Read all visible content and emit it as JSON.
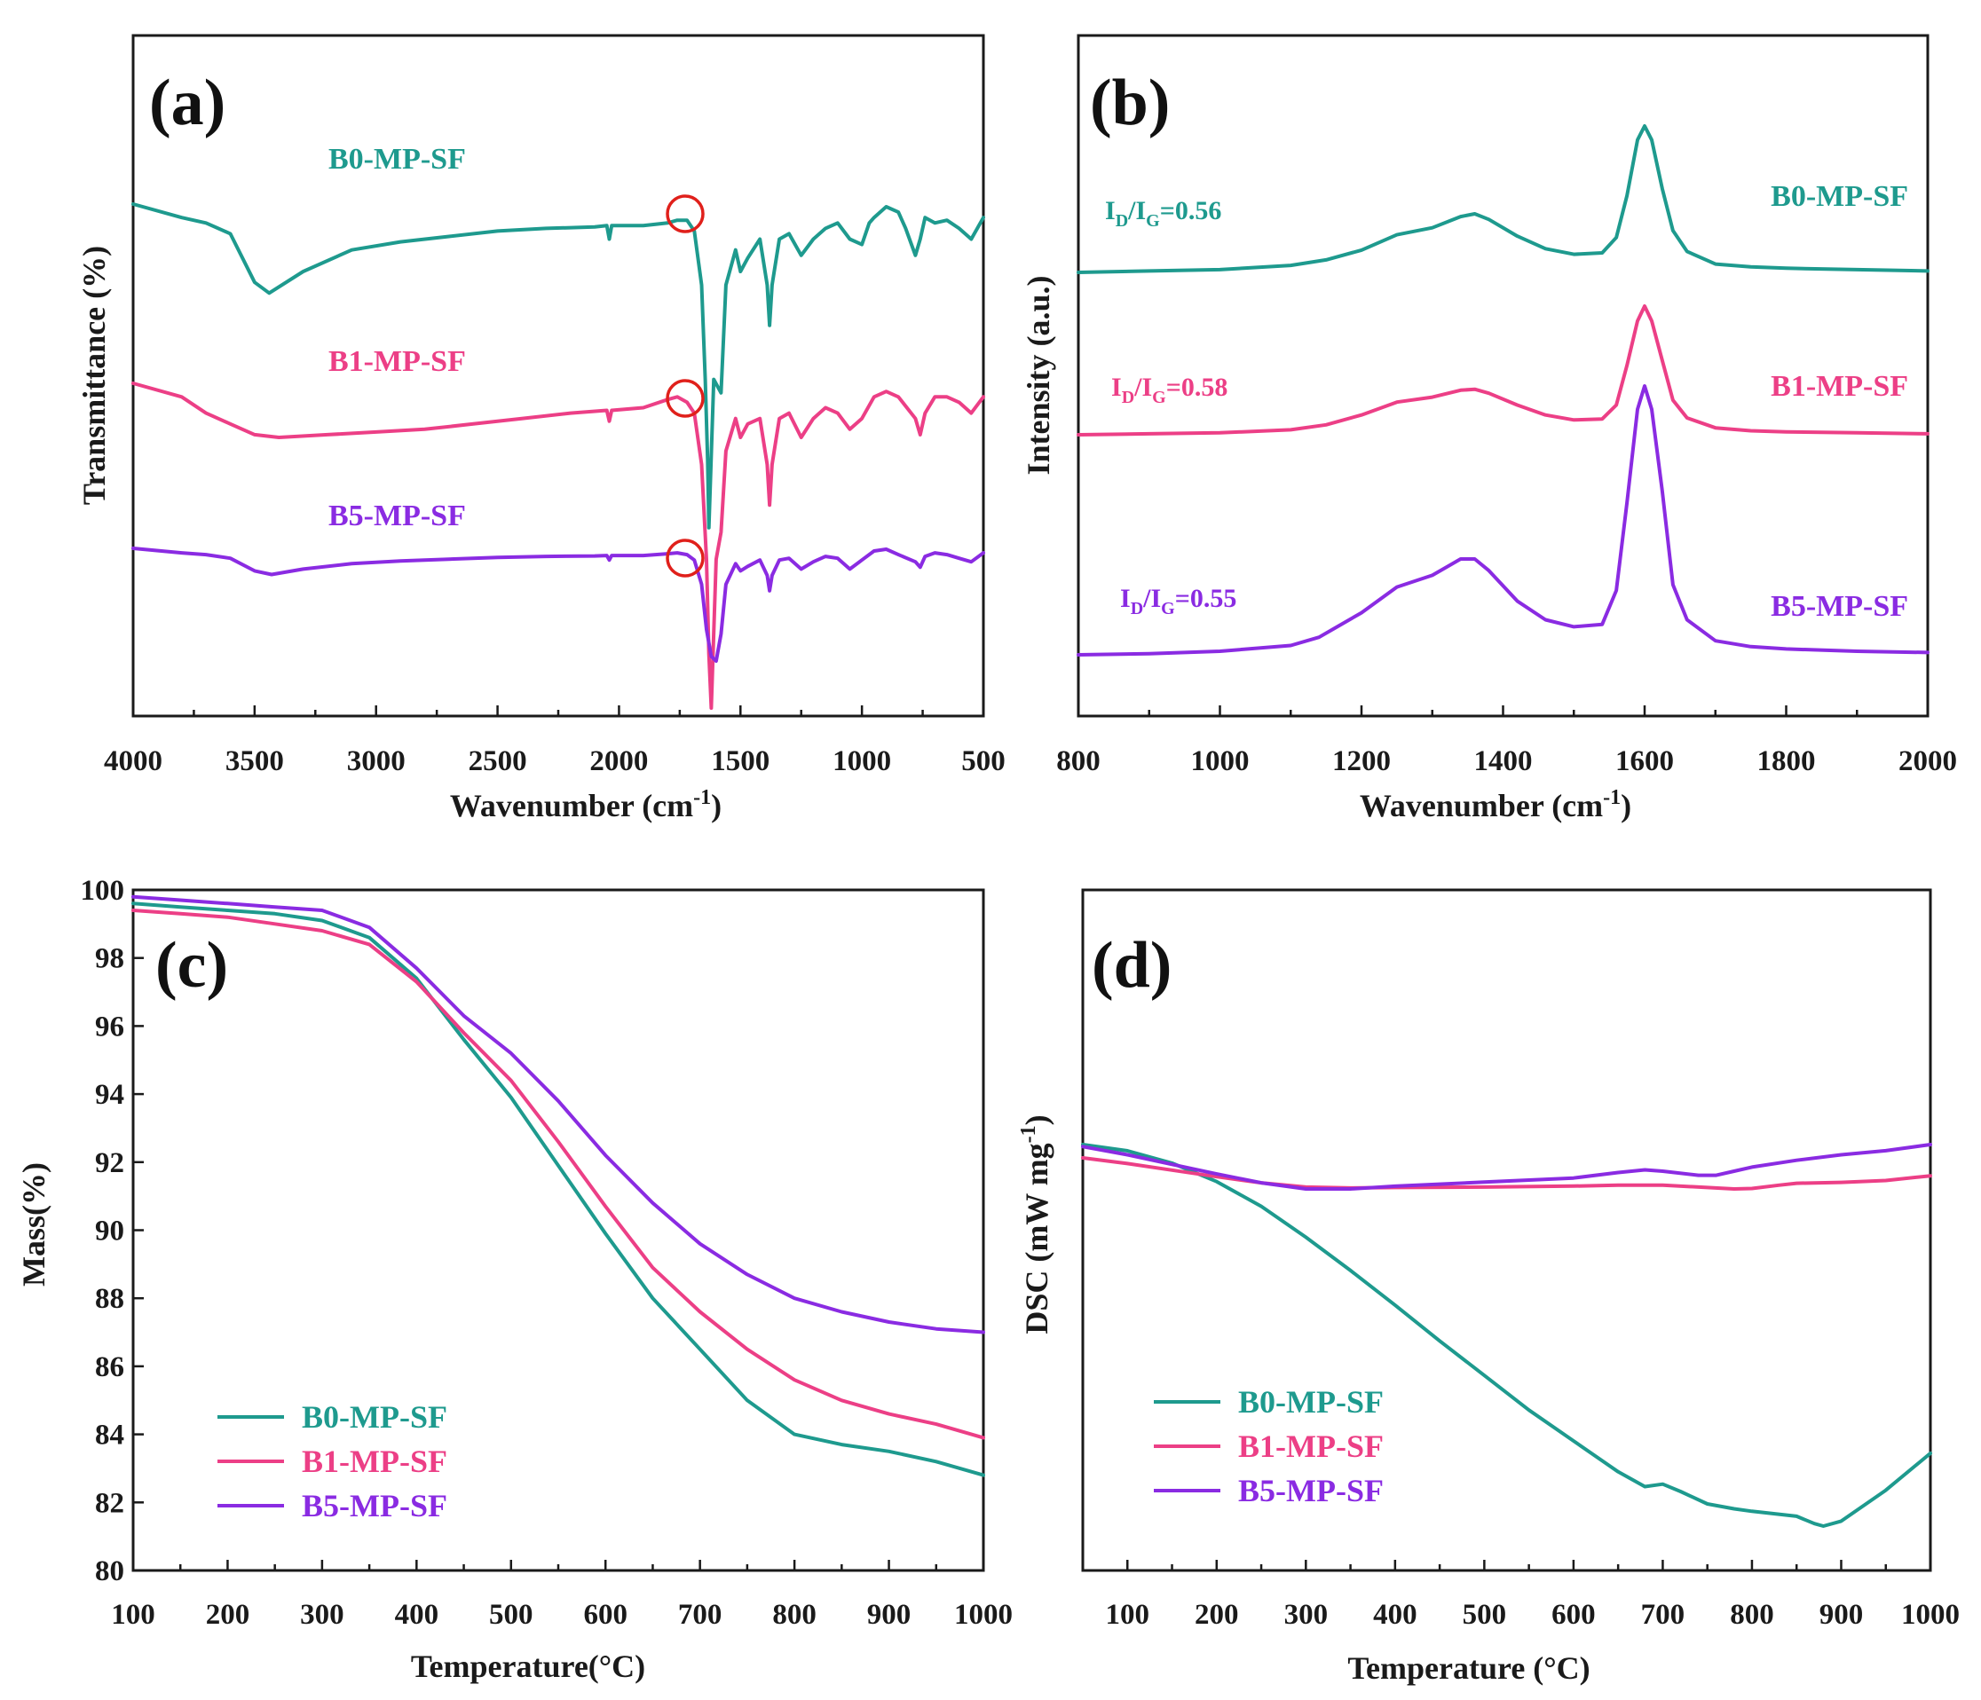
{
  "colors": {
    "B0": "#1e9a8e",
    "B1": "#ec3f86",
    "B5": "#8a2be2",
    "axis": "#1a1a1a",
    "marker": "#e0201b"
  },
  "chart_data": [
    {
      "panel": "(a)",
      "type": "line",
      "xlabel": "Wavenumber (cm-1)",
      "xlabel_main": "Wavenumber (cm",
      "xlabel_sup": "-1",
      "xlabel_end": ")",
      "ylabel": "Transmittance (%)",
      "xlim": [
        4000,
        500
      ],
      "x_ticks": [
        "4000",
        "3500",
        "3000",
        "2500",
        "2000",
        "1500",
        "1000",
        "500"
      ],
      "y_ticks": [],
      "annotation": "red circles at ~1720 cm-1 on each curve",
      "series": [
        {
          "name": "B0-MP-SF",
          "x": [
            4000,
            3800,
            3700,
            3600,
            3500,
            3440,
            3300,
            3100,
            2900,
            2700,
            2500,
            2300,
            2100,
            2050,
            2040,
            2030,
            1900,
            1800,
            1760,
            1720,
            1690,
            1660,
            1645,
            1635,
            1630,
            1610,
            1580,
            1560,
            1520,
            1500,
            1470,
            1420,
            1390,
            1380,
            1370,
            1340,
            1300,
            1250,
            1200,
            1150,
            1100,
            1050,
            1000,
            970,
            950,
            900,
            850,
            820,
            780,
            760,
            740,
            700,
            650,
            600,
            550,
            500
          ],
          "values": [
            0.85,
            0.8,
            0.78,
            0.74,
            0.56,
            0.52,
            0.6,
            0.68,
            0.71,
            0.73,
            0.75,
            0.76,
            0.765,
            0.77,
            0.72,
            0.77,
            0.77,
            0.78,
            0.79,
            0.79,
            0.75,
            0.55,
            0.2,
            -0.1,
            -0.35,
            0.2,
            0.15,
            0.55,
            0.68,
            0.6,
            0.65,
            0.72,
            0.55,
            0.4,
            0.55,
            0.72,
            0.74,
            0.66,
            0.72,
            0.76,
            0.78,
            0.72,
            0.7,
            0.78,
            0.8,
            0.84,
            0.82,
            0.76,
            0.66,
            0.72,
            0.8,
            0.78,
            0.79,
            0.76,
            0.72,
            0.8
          ]
        },
        {
          "name": "B1-MP-SF",
          "x": [
            4000,
            3800,
            3700,
            3600,
            3500,
            3400,
            3200,
            3000,
            2800,
            2600,
            2400,
            2200,
            2050,
            2040,
            2030,
            1900,
            1800,
            1760,
            1720,
            1690,
            1660,
            1640,
            1630,
            1620,
            1600,
            1580,
            1560,
            1520,
            1500,
            1470,
            1420,
            1390,
            1380,
            1370,
            1340,
            1300,
            1250,
            1200,
            1150,
            1100,
            1050,
            1000,
            950,
            900,
            850,
            780,
            760,
            740,
            700,
            650,
            600,
            550,
            500
          ],
          "values": [
            0.85,
            0.8,
            0.74,
            0.7,
            0.66,
            0.65,
            0.66,
            0.67,
            0.68,
            0.7,
            0.72,
            0.74,
            0.75,
            0.71,
            0.75,
            0.76,
            0.79,
            0.8,
            0.78,
            0.74,
            0.55,
            0.2,
            -0.15,
            -0.35,
            0.2,
            0.3,
            0.6,
            0.72,
            0.65,
            0.7,
            0.72,
            0.55,
            0.4,
            0.55,
            0.72,
            0.74,
            0.65,
            0.72,
            0.76,
            0.74,
            0.68,
            0.72,
            0.8,
            0.82,
            0.8,
            0.72,
            0.66,
            0.74,
            0.8,
            0.8,
            0.78,
            0.74,
            0.8
          ]
        },
        {
          "name": "B5-MP-SF",
          "x": [
            4000,
            3800,
            3700,
            3600,
            3500,
            3430,
            3300,
            3100,
            2900,
            2700,
            2500,
            2300,
            2100,
            2050,
            2040,
            2030,
            1900,
            1800,
            1760,
            1720,
            1690,
            1660,
            1640,
            1620,
            1600,
            1580,
            1560,
            1520,
            1500,
            1470,
            1420,
            1390,
            1380,
            1370,
            1340,
            1300,
            1250,
            1200,
            1150,
            1100,
            1050,
            1000,
            950,
            900,
            850,
            780,
            760,
            740,
            700,
            650,
            600,
            550,
            500
          ],
          "values": [
            0.85,
            0.8,
            0.78,
            0.74,
            0.6,
            0.56,
            0.62,
            0.68,
            0.71,
            0.73,
            0.75,
            0.76,
            0.765,
            0.77,
            0.72,
            0.77,
            0.77,
            0.79,
            0.8,
            0.78,
            0.72,
            0.45,
            -0.05,
            -0.35,
            -0.4,
            -0.1,
            0.45,
            0.68,
            0.6,
            0.65,
            0.72,
            0.55,
            0.38,
            0.55,
            0.72,
            0.74,
            0.62,
            0.7,
            0.76,
            0.74,
            0.62,
            0.72,
            0.82,
            0.84,
            0.78,
            0.7,
            0.64,
            0.76,
            0.8,
            0.78,
            0.74,
            0.7,
            0.8
          ]
        }
      ]
    },
    {
      "panel": "(b)",
      "type": "line",
      "xlabel": "Wavenumber (cm-1)",
      "xlabel_main": "Wavenumber (cm",
      "xlabel_sup": "-1",
      "xlabel_end": ")",
      "ylabel": "Intensity (a.u.)",
      "xlim": [
        800,
        2000
      ],
      "x_ticks": [
        "800",
        "1000",
        "1200",
        "1400",
        "1600",
        "1800",
        "2000"
      ],
      "y_ticks": [],
      "ratios": [
        {
          "series": "B0-MP-SF",
          "main": "I",
          "sub1": "D",
          "mid": "/I",
          "sub2": "G",
          "end": "=0.56"
        },
        {
          "series": "B1-MP-SF",
          "main": "I",
          "sub1": "D",
          "mid": "/I",
          "sub2": "G",
          "end": "=0.58"
        },
        {
          "series": "B5-MP-SF",
          "main": "I",
          "sub1": "D",
          "mid": "/I",
          "sub2": "G",
          "end": "=0.55"
        }
      ],
      "series": [
        {
          "name": "B0-MP-SF",
          "x": [
            800,
            900,
            1000,
            1100,
            1150,
            1200,
            1250,
            1300,
            1340,
            1360,
            1380,
            1420,
            1460,
            1500,
            1540,
            1560,
            1575,
            1590,
            1600,
            1610,
            1625,
            1640,
            1660,
            1700,
            1750,
            1800,
            1900,
            2000
          ],
          "values": [
            0.0,
            0.01,
            0.02,
            0.05,
            0.09,
            0.16,
            0.27,
            0.32,
            0.4,
            0.42,
            0.38,
            0.26,
            0.17,
            0.13,
            0.14,
            0.25,
            0.55,
            0.95,
            1.05,
            0.95,
            0.6,
            0.3,
            0.15,
            0.06,
            0.04,
            0.03,
            0.02,
            0.01
          ]
        },
        {
          "name": "B1-MP-SF",
          "x": [
            800,
            900,
            1000,
            1100,
            1150,
            1200,
            1250,
            1300,
            1340,
            1360,
            1380,
            1420,
            1460,
            1500,
            1540,
            1560,
            1575,
            1590,
            1600,
            1610,
            1625,
            1640,
            1660,
            1700,
            1750,
            1800,
            1900,
            2000
          ],
          "values": [
            0.0,
            0.01,
            0.02,
            0.05,
            0.1,
            0.2,
            0.33,
            0.38,
            0.45,
            0.46,
            0.42,
            0.3,
            0.2,
            0.15,
            0.16,
            0.3,
            0.7,
            1.15,
            1.3,
            1.15,
            0.75,
            0.35,
            0.17,
            0.07,
            0.04,
            0.03,
            0.02,
            0.01
          ]
        },
        {
          "name": "B5-MP-SF",
          "x": [
            800,
            900,
            1000,
            1100,
            1140,
            1160,
            1200,
            1250,
            1300,
            1340,
            1360,
            1380,
            1420,
            1460,
            1500,
            1540,
            1560,
            1575,
            1590,
            1600,
            1610,
            1625,
            1640,
            1660,
            1700,
            1750,
            1800,
            1900,
            2000
          ],
          "values": [
            0.0,
            0.01,
            0.03,
            0.08,
            0.15,
            0.22,
            0.36,
            0.58,
            0.68,
            0.82,
            0.82,
            0.72,
            0.46,
            0.3,
            0.24,
            0.26,
            0.55,
            1.3,
            2.1,
            2.3,
            2.1,
            1.4,
            0.6,
            0.3,
            0.12,
            0.07,
            0.05,
            0.03,
            0.02
          ]
        }
      ]
    },
    {
      "panel": "(c)",
      "type": "line",
      "xlabel": "Temperature(°C)",
      "ylabel": "Mass(%)",
      "xlim": [
        100,
        1000
      ],
      "ylim": [
        80,
        100
      ],
      "x_ticks": [
        "100",
        "200",
        "300",
        "400",
        "500",
        "600",
        "700",
        "800",
        "900",
        "1000"
      ],
      "y_ticks": [
        "80",
        "82",
        "84",
        "86",
        "88",
        "90",
        "92",
        "94",
        "96",
        "98",
        "100"
      ],
      "legend": [
        "B0-MP-SF",
        "B1-MP-SF",
        "B5-MP-SF"
      ],
      "series": [
        {
          "name": "B0-MP-SF",
          "x": [
            100,
            150,
            200,
            250,
            300,
            350,
            400,
            450,
            500,
            550,
            600,
            650,
            700,
            750,
            800,
            850,
            900,
            950,
            1000
          ],
          "values": [
            99.6,
            99.5,
            99.4,
            99.3,
            99.1,
            98.6,
            97.4,
            95.6,
            93.9,
            91.9,
            89.9,
            88.0,
            86.5,
            85.0,
            84.0,
            83.7,
            83.5,
            83.2,
            82.8
          ]
        },
        {
          "name": "B1-MP-SF",
          "x": [
            100,
            150,
            200,
            250,
            300,
            350,
            400,
            450,
            500,
            550,
            600,
            650,
            700,
            750,
            800,
            850,
            900,
            950,
            1000
          ],
          "values": [
            99.4,
            99.3,
            99.2,
            99.0,
            98.8,
            98.4,
            97.3,
            95.8,
            94.4,
            92.6,
            90.7,
            88.9,
            87.6,
            86.5,
            85.6,
            85.0,
            84.6,
            84.3,
            83.9
          ]
        },
        {
          "name": "B5-MP-SF",
          "x": [
            100,
            150,
            200,
            250,
            300,
            350,
            400,
            450,
            500,
            550,
            600,
            650,
            700,
            750,
            800,
            850,
            900,
            950,
            1000
          ],
          "values": [
            99.8,
            99.7,
            99.6,
            99.5,
            99.4,
            98.9,
            97.7,
            96.3,
            95.2,
            93.8,
            92.2,
            90.8,
            89.6,
            88.7,
            88.0,
            87.6,
            87.3,
            87.1,
            87.0
          ]
        }
      ]
    },
    {
      "panel": "(d)",
      "type": "line",
      "xlabel": "Temperature (°C)",
      "ylabel": "DSC (mW mg-1)",
      "ylabel_main": "DSC (mW mg",
      "ylabel_sup": "-1",
      "ylabel_end": ")",
      "xlim": [
        50,
        1000
      ],
      "x_ticks": [
        "100",
        "200",
        "300",
        "400",
        "500",
        "600",
        "700",
        "800",
        "900",
        "1000"
      ],
      "y_ticks": [],
      "legend": [
        "B0-MP-SF",
        "B1-MP-SF",
        "B5-MP-SF"
      ],
      "series": [
        {
          "name": "B0-MP-SF",
          "x": [
            50,
            100,
            150,
            200,
            250,
            300,
            350,
            400,
            450,
            500,
            550,
            600,
            650,
            680,
            700,
            720,
            750,
            780,
            800,
            850,
            870,
            880,
            900,
            950,
            1000
          ],
          "values": [
            2.35,
            2.3,
            2.2,
            2.05,
            1.85,
            1.6,
            1.33,
            1.05,
            0.76,
            0.48,
            0.2,
            -0.05,
            -0.3,
            -0.42,
            -0.4,
            -0.46,
            -0.56,
            -0.6,
            -0.62,
            -0.66,
            -0.72,
            -0.74,
            -0.7,
            -0.45,
            -0.15
          ]
        },
        {
          "name": "B1-MP-SF",
          "x": [
            50,
            100,
            150,
            200,
            250,
            300,
            350,
            400,
            500,
            600,
            650,
            700,
            750,
            780,
            800,
            830,
            850,
            900,
            950,
            1000
          ],
          "values": [
            2.0,
            1.88,
            1.74,
            1.6,
            1.47,
            1.38,
            1.36,
            1.37,
            1.38,
            1.4,
            1.42,
            1.42,
            1.37,
            1.34,
            1.35,
            1.42,
            1.46,
            1.48,
            1.52,
            1.62
          ]
        },
        {
          "name": "B5-MP-SF",
          "x": [
            50,
            100,
            150,
            200,
            250,
            300,
            350,
            400,
            500,
            600,
            650,
            680,
            700,
            740,
            760,
            780,
            800,
            850,
            900,
            950,
            1000
          ],
          "values": [
            2.02,
            1.9,
            1.76,
            1.62,
            1.49,
            1.4,
            1.4,
            1.44,
            1.5,
            1.56,
            1.64,
            1.68,
            1.66,
            1.6,
            1.6,
            1.66,
            1.72,
            1.82,
            1.9,
            1.96,
            2.05
          ]
        }
      ]
    }
  ]
}
